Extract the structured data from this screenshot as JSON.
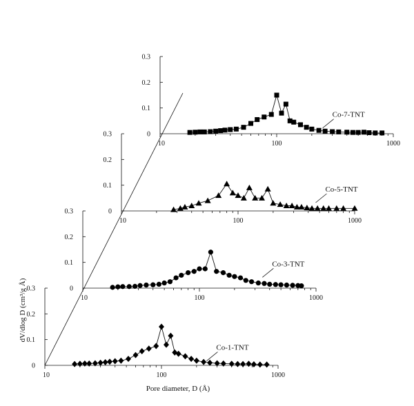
{
  "chart_data": {
    "type": "line",
    "layout": "stacked-offset-3d",
    "xlabel": "Pore diameter, D (Å)",
    "ylabel": "dV/dlog D (cm³/g Å)",
    "x_scale": "log",
    "xlim": [
      10,
      1000
    ],
    "ylim": [
      0,
      0.3
    ],
    "x_tick_labels": [
      "10",
      "100",
      "1000"
    ],
    "y_tick_labels": [
      "0",
      "0.1",
      "0.2",
      "0.3"
    ],
    "grid": false,
    "series": [
      {
        "name": "Co-1-TNT",
        "marker": "diamond",
        "x": [
          18,
          20,
          22,
          24,
          27,
          30,
          33,
          36,
          40,
          45,
          52,
          60,
          68,
          78,
          90,
          100,
          110,
          120,
          130,
          140,
          160,
          180,
          200,
          230,
          260,
          300,
          340,
          400,
          450,
          500,
          560,
          620,
          700,
          800
        ],
        "y": [
          0.005,
          0.006,
          0.007,
          0.007,
          0.008,
          0.01,
          0.012,
          0.014,
          0.016,
          0.018,
          0.025,
          0.04,
          0.055,
          0.065,
          0.075,
          0.15,
          0.08,
          0.115,
          0.05,
          0.045,
          0.035,
          0.025,
          0.018,
          0.013,
          0.01,
          0.008,
          0.007,
          0.006,
          0.005,
          0.005,
          0.006,
          0.004,
          0.003,
          0.003
        ],
        "label_pos": [
          295,
          0.06
        ]
      },
      {
        "name": "Co-3-TNT",
        "marker": "circle",
        "x": [
          18,
          20,
          22,
          25,
          28,
          31,
          35,
          40,
          45,
          50,
          56,
          63,
          70,
          80,
          90,
          100,
          112,
          125,
          140,
          160,
          180,
          200,
          225,
          250,
          280,
          320,
          360,
          400,
          450,
          500,
          560,
          630,
          700,
          750
        ],
        "y": [
          0.003,
          0.005,
          0.006,
          0.006,
          0.007,
          0.01,
          0.012,
          0.013,
          0.015,
          0.02,
          0.025,
          0.04,
          0.05,
          0.06,
          0.065,
          0.075,
          0.075,
          0.14,
          0.065,
          0.06,
          0.05,
          0.045,
          0.04,
          0.03,
          0.025,
          0.02,
          0.018,
          0.015,
          0.014,
          0.013,
          0.012,
          0.011,
          0.01,
          0.009
        ],
        "label_pos": [
          420,
          0.085
        ]
      },
      {
        "name": "Co-5-TNT",
        "marker": "triangle",
        "x": [
          28,
          32,
          35,
          40,
          46,
          55,
          68,
          80,
          90,
          100,
          112,
          125,
          140,
          160,
          180,
          200,
          230,
          260,
          290,
          320,
          350,
          390,
          430,
          480,
          540,
          600,
          700,
          800,
          1000
        ],
        "y": [
          0.005,
          0.01,
          0.015,
          0.02,
          0.03,
          0.04,
          0.06,
          0.105,
          0.07,
          0.06,
          0.05,
          0.09,
          0.05,
          0.05,
          0.085,
          0.03,
          0.025,
          0.02,
          0.02,
          0.015,
          0.015,
          0.012,
          0.01,
          0.01,
          0.01,
          0.01,
          0.01,
          0.01,
          0.01
        ],
        "label_pos": [
          560,
          0.075
        ]
      },
      {
        "name": "Co-7-TNT",
        "marker": "square",
        "x": [
          18,
          20,
          22,
          24,
          27,
          30,
          33,
          36,
          40,
          45,
          52,
          60,
          68,
          78,
          90,
          100,
          110,
          120,
          130,
          140,
          160,
          180,
          200,
          230,
          260,
          300,
          340,
          400,
          450,
          500,
          560,
          620,
          700,
          800
        ],
        "y": [
          0.005,
          0.006,
          0.007,
          0.007,
          0.008,
          0.01,
          0.012,
          0.014,
          0.016,
          0.018,
          0.025,
          0.04,
          0.055,
          0.065,
          0.075,
          0.15,
          0.08,
          0.115,
          0.05,
          0.045,
          0.035,
          0.025,
          0.018,
          0.013,
          0.01,
          0.008,
          0.007,
          0.006,
          0.005,
          0.005,
          0.006,
          0.004,
          0.003,
          0.003
        ],
        "label_pos": [
          300,
          0.065
        ]
      }
    ]
  }
}
